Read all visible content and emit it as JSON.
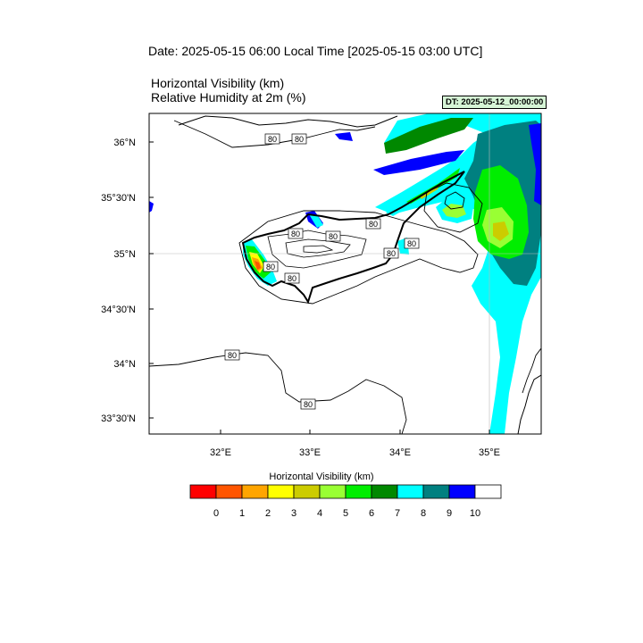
{
  "header": {
    "date_title": "Date: 2025-05-15  06:00 Local Time [2025-05-15  03:00 UTC]",
    "field_title_1": "Horizontal Visibility   (km)",
    "field_title_2": "Relative Humidity at 2m   (%)",
    "dt_badge": "DT: 2025-05-12_00:00:00"
  },
  "map": {
    "lat_labels": [
      "36°N",
      "35°30'N",
      "35°N",
      "34°30'N",
      "34°N",
      "33°30'N"
    ],
    "lon_labels": [
      "32°E",
      "33°E",
      "34°E",
      "35°E"
    ],
    "contour_labels": [
      "80",
      "80",
      "80",
      "80",
      "80",
      "80",
      "80",
      "80",
      "80",
      "80",
      "80"
    ]
  },
  "colorbar": {
    "title": "Horizontal Visibility  (km)",
    "colors": [
      "#ff0000",
      "#ff5500",
      "#ffa500",
      "#ffff00",
      "#cccc00",
      "#99ff33",
      "#00ee00",
      "#008800",
      "#00ffff",
      "#008080",
      "#0000ff",
      "#ffffff"
    ],
    "ticks": [
      "0",
      "1",
      "2",
      "3",
      "4",
      "5",
      "6",
      "7",
      "8",
      "9",
      "10"
    ]
  }
}
